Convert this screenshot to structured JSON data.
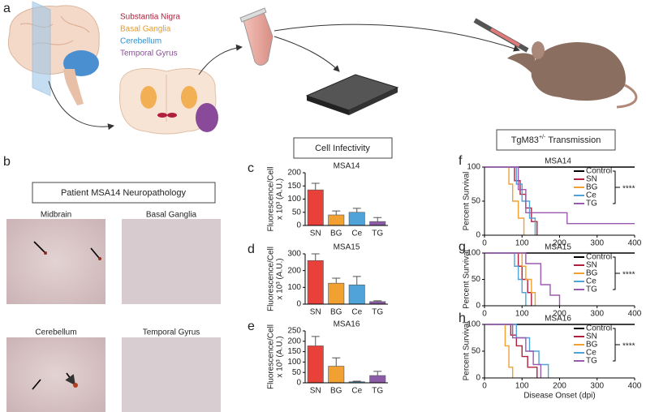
{
  "panels": {
    "a": {
      "letter": "a",
      "regions": [
        {
          "label": "Substantia Nigra",
          "color": "#b0203c"
        },
        {
          "label": "Basal Ganglia",
          "color": "#e89a2a"
        },
        {
          "label": "Cerebellum",
          "color": "#2a8fd0"
        },
        {
          "label": "Temporal Gyrus",
          "color": "#8a4a9a"
        }
      ]
    },
    "b": {
      "letter": "b",
      "title": "Patient MSA14 Neuropathology",
      "images": [
        "Midbrain",
        "Basal Ganglia",
        "Cerebellum",
        "Temporal Gyrus"
      ]
    },
    "infectivity_heading": "Cell Infectivity",
    "transmission_heading": {
      "base": "TgM83",
      "sup": "+/-",
      "rest": "Transmission"
    }
  },
  "chart_data": [
    {
      "type": "bar",
      "letter": "c",
      "title": "MSA14",
      "ylabel": [
        "Fluorescence/Cell",
        "x 10³ (A.U.)"
      ],
      "categories": [
        "SN",
        "BG",
        "Ce",
        "TG"
      ],
      "values": [
        135,
        40,
        50,
        15
      ],
      "errors": [
        25,
        15,
        15,
        15
      ],
      "colors": [
        "#e8413a",
        "#f0a132",
        "#4fa3d9",
        "#8c5ba8"
      ],
      "ylim": [
        0,
        200
      ],
      "yticks": [
        0,
        50,
        100,
        150,
        200
      ]
    },
    {
      "type": "bar",
      "letter": "d",
      "title": "MSA15",
      "ylabel": [
        "Fluorescence/Cell",
        "x 10³ (A.U.)"
      ],
      "categories": [
        "SN",
        "BG",
        "Ce",
        "TG"
      ],
      "values": [
        260,
        125,
        115,
        15
      ],
      "errors": [
        40,
        30,
        50,
        5
      ],
      "colors": [
        "#e8413a",
        "#f0a132",
        "#4fa3d9",
        "#8c5ba8"
      ],
      "ylim": [
        0,
        300
      ],
      "yticks": [
        0,
        100,
        200,
        300
      ]
    },
    {
      "type": "bar",
      "letter": "e",
      "title": "MSA16",
      "ylabel": [
        "Fluorescence/Cell",
        "x 10³ (A.U.)"
      ],
      "categories": [
        "SN",
        "BG",
        "Ce",
        "TG"
      ],
      "values": [
        178,
        80,
        5,
        35
      ],
      "errors": [
        45,
        40,
        3,
        20
      ],
      "colors": [
        "#e8413a",
        "#f0a132",
        "#4fa3d9",
        "#8c5ba8"
      ],
      "ylim": [
        0,
        250
      ],
      "yticks": [
        0,
        50,
        100,
        150,
        200,
        250
      ]
    },
    {
      "type": "survival",
      "letter": "f",
      "title": "MSA14",
      "ylabel": "Percent Survival",
      "annotation": "****",
      "xlim": [
        0,
        400
      ],
      "xticks": [
        0,
        100,
        200,
        300,
        400
      ],
      "ylim": [
        0,
        100
      ],
      "yticks": [
        0,
        50,
        100
      ],
      "series": [
        {
          "name": "Control",
          "color": "#000000",
          "x": [
            0,
            400
          ],
          "values": [
            100,
            100
          ]
        },
        {
          "name": "SN",
          "color": "#b0203c",
          "x": [
            0,
            80,
            80,
            95,
            95,
            110,
            110,
            125,
            125,
            140,
            140
          ],
          "values": [
            100,
            100,
            80,
            80,
            60,
            60,
            40,
            40,
            20,
            20,
            0
          ]
        },
        {
          "name": "BG",
          "color": "#f0a132",
          "x": [
            0,
            65,
            65,
            75,
            75,
            90,
            90,
            105,
            105
          ],
          "values": [
            100,
            100,
            75,
            75,
            50,
            50,
            25,
            25,
            0
          ]
        },
        {
          "name": "Ce",
          "color": "#4fa3d9",
          "x": [
            0,
            85,
            85,
            100,
            100,
            120,
            120,
            135,
            135
          ],
          "values": [
            100,
            100,
            75,
            75,
            50,
            50,
            25,
            25,
            0
          ]
        },
        {
          "name": "TG",
          "color": "#9a5ab0",
          "x": [
            0,
            90,
            90,
            110,
            110,
            220,
            220,
            400
          ],
          "values": [
            100,
            100,
            67,
            67,
            33,
            33,
            17,
            17
          ]
        }
      ]
    },
    {
      "type": "survival",
      "letter": "g",
      "title": "MSA15",
      "ylabel": "Percent Survival",
      "annotation": "****",
      "xlim": [
        0,
        400
      ],
      "xticks": [
        0,
        100,
        200,
        300,
        400
      ],
      "ylim": [
        0,
        100
      ],
      "yticks": [
        0,
        50,
        100
      ],
      "series": [
        {
          "name": "Control",
          "color": "#000000",
          "x": [
            0,
            400
          ],
          "values": [
            100,
            100
          ]
        },
        {
          "name": "SN",
          "color": "#b0203c",
          "x": [
            0,
            90,
            90,
            100,
            100,
            115,
            115,
            125,
            125
          ],
          "values": [
            100,
            100,
            75,
            75,
            50,
            50,
            25,
            25,
            0
          ]
        },
        {
          "name": "BG",
          "color": "#f0a132",
          "x": [
            0,
            100,
            100,
            110,
            110,
            125,
            125,
            135,
            135
          ],
          "values": [
            100,
            100,
            75,
            75,
            50,
            50,
            25,
            25,
            0
          ]
        },
        {
          "name": "Ce",
          "color": "#4fa3d9",
          "x": [
            0,
            80,
            80,
            90,
            90,
            100,
            100,
            110,
            110
          ],
          "values": [
            100,
            100,
            75,
            75,
            50,
            50,
            25,
            25,
            0
          ]
        },
        {
          "name": "TG",
          "color": "#9a5ab0",
          "x": [
            0,
            110,
            110,
            150,
            150,
            175,
            175,
            200,
            200
          ],
          "values": [
            100,
            100,
            80,
            80,
            40,
            40,
            20,
            20,
            0
          ]
        }
      ]
    },
    {
      "type": "survival",
      "letter": "h",
      "title": "MSA16",
      "ylabel": "Percent Survival",
      "xlabel": "Disease Onset (dpi)",
      "annotation": "****",
      "xlim": [
        0,
        400
      ],
      "xticks": [
        0,
        100,
        200,
        300,
        400
      ],
      "ylim": [
        0,
        100
      ],
      "yticks": [
        0,
        50,
        100
      ],
      "series": [
        {
          "name": "Control",
          "color": "#000000",
          "x": [
            0,
            400
          ],
          "values": [
            100,
            100
          ]
        },
        {
          "name": "SN",
          "color": "#b0203c",
          "x": [
            0,
            70,
            70,
            85,
            85,
            100,
            100,
            115,
            115,
            140,
            140
          ],
          "values": [
            100,
            100,
            80,
            80,
            60,
            60,
            40,
            40,
            20,
            20,
            0
          ]
        },
        {
          "name": "BG",
          "color": "#f0a132",
          "x": [
            0,
            55,
            55,
            65,
            65,
            75,
            75
          ],
          "values": [
            100,
            100,
            60,
            60,
            20,
            20,
            0
          ]
        },
        {
          "name": "Ce",
          "color": "#4fa3d9",
          "x": [
            0,
            85,
            85,
            120,
            120,
            145,
            145,
            170,
            170
          ],
          "values": [
            100,
            100,
            75,
            75,
            50,
            50,
            25,
            25,
            0
          ]
        },
        {
          "name": "TG",
          "color": "#9a5ab0",
          "x": [
            0,
            75,
            75,
            110,
            110,
            130,
            130,
            150,
            150
          ],
          "values": [
            100,
            100,
            75,
            75,
            50,
            50,
            25,
            25,
            0
          ]
        }
      ]
    }
  ]
}
